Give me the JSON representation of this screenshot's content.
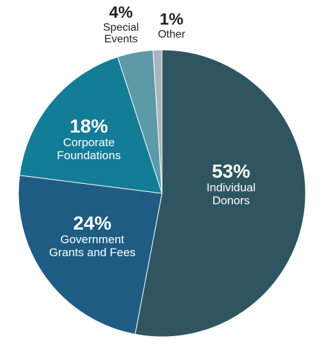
{
  "chart_data": {
    "type": "pie",
    "slices": [
      {
        "value": 53,
        "pct_label": "53%",
        "name_lines": [
          "Individual",
          "Donors"
        ],
        "color": "#2f5561"
      },
      {
        "value": 24,
        "pct_label": "24%",
        "name_lines": [
          "Government",
          "Grants and Fees"
        ],
        "color": "#1e5c84"
      },
      {
        "value": 18,
        "pct_label": "18%",
        "name_lines": [
          "Corporate",
          "Foundations"
        ],
        "color": "#137c97"
      },
      {
        "value": 4,
        "pct_label": "4%",
        "name_lines": [
          "Special",
          "Events"
        ],
        "color": "#5c9aa7"
      },
      {
        "value": 1,
        "pct_label": "1%",
        "name_lines": [
          "Other"
        ],
        "color": "#a9b4bd"
      }
    ]
  }
}
